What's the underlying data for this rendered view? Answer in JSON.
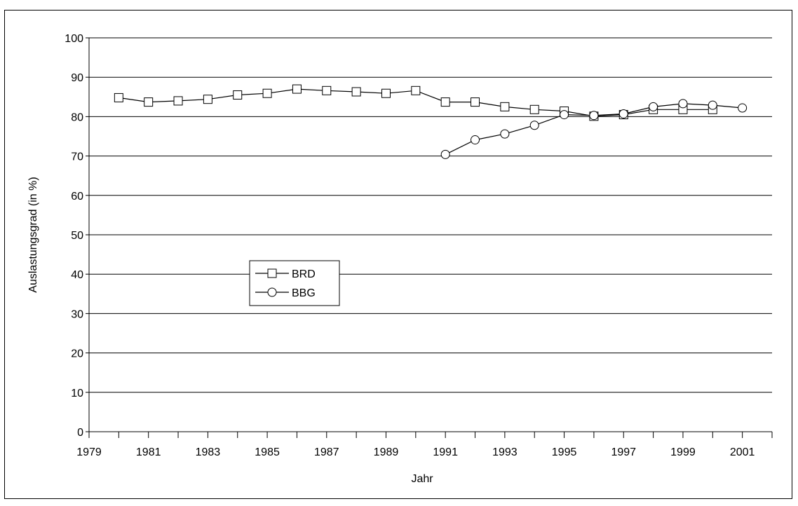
{
  "chart_data": {
    "type": "line",
    "title": "",
    "xlabel": "Jahr",
    "ylabel": "Auslastungsgrad (in %)",
    "xlim": [
      1979,
      2002
    ],
    "ylim": [
      0,
      100
    ],
    "x_tick_labels": [
      "1979",
      "1981",
      "1983",
      "1985",
      "1987",
      "1989",
      "1991",
      "1993",
      "1995",
      "1997",
      "1999",
      "2001"
    ],
    "y_tick_labels": [
      "0",
      "10",
      "20",
      "30",
      "40",
      "50",
      "60",
      "70",
      "80",
      "90",
      "100"
    ],
    "grid": "horizontal",
    "legend_position": "center-left",
    "series": [
      {
        "name": "BRD",
        "marker": "square",
        "x": [
          1980,
          1981,
          1982,
          1983,
          1984,
          1985,
          1986,
          1987,
          1988,
          1989,
          1990,
          1991,
          1992,
          1993,
          1994,
          1995,
          1996,
          1997,
          1998,
          1999,
          2000
        ],
        "y": [
          84.8,
          83.7,
          84.0,
          84.4,
          85.5,
          85.9,
          87.0,
          86.6,
          86.3,
          85.9,
          86.6,
          83.7,
          83.7,
          82.5,
          81.8,
          81.4,
          80.1,
          80.5,
          81.8,
          81.8,
          81.8
        ]
      },
      {
        "name": "BBG",
        "marker": "circle",
        "x": [
          1991,
          1992,
          1993,
          1994,
          1995,
          1996,
          1997,
          1998,
          1999,
          2000,
          2001
        ],
        "y": [
          70.4,
          74.1,
          75.6,
          77.8,
          80.5,
          80.3,
          80.7,
          82.5,
          83.3,
          82.9,
          82.2
        ]
      }
    ]
  }
}
